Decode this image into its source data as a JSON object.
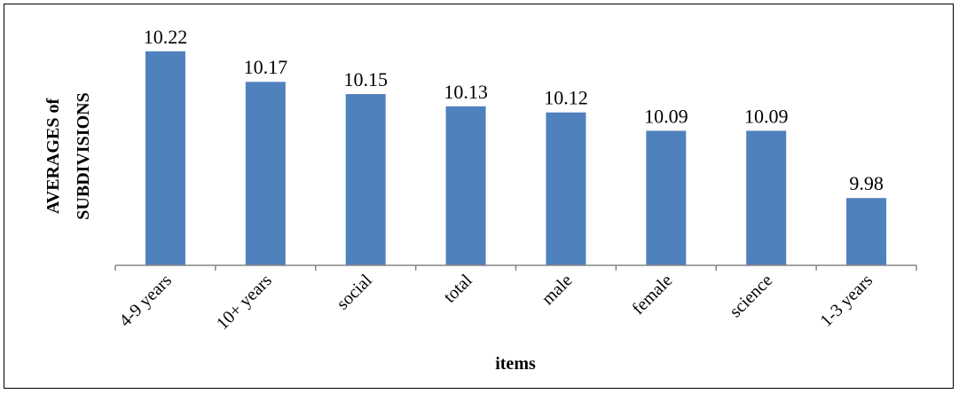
{
  "chart_data": {
    "type": "bar",
    "categories": [
      "4-9 years",
      "10+ years",
      "social",
      "total",
      "male",
      "female",
      "science",
      "1-3 years"
    ],
    "values": [
      10.22,
      10.17,
      10.15,
      10.13,
      10.12,
      10.09,
      10.09,
      9.98
    ],
    "value_labels": [
      "10.22",
      "10.17",
      "10.15",
      "10.13",
      "10.12",
      "10.09",
      "10.09",
      "9.98"
    ],
    "title": "",
    "xlabel": "items",
    "ylabel_lines": [
      "AVERAGES of",
      "SUBDIVISIONS"
    ],
    "ylim": [
      9.87,
      10.24
    ],
    "grid": false,
    "bar_color": "#4F81BD"
  }
}
